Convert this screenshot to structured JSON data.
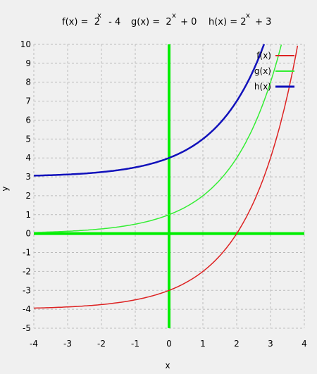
{
  "chart_data": {
    "type": "line",
    "title_parts": [
      "f(x) =  2",
      "x",
      " - 4",
      "g(x) =  2",
      "x",
      " + 0",
      "h(x) = 2",
      "x",
      " + 3"
    ],
    "xlabel": "x",
    "ylabel": "y",
    "xlim": [
      -4,
      4
    ],
    "ylim": [
      -5,
      10
    ],
    "xticks": [
      -4,
      -3,
      -2,
      -1,
      0,
      1,
      2,
      3,
      4
    ],
    "yticks": [
      -5,
      -4,
      -3,
      -2,
      -1,
      0,
      1,
      2,
      3,
      4,
      5,
      6,
      7,
      8,
      9,
      10
    ],
    "grid": true,
    "legend_position": "top-right",
    "axes_color": "#00ee00",
    "series": [
      {
        "name": "f(x)",
        "color": "#dd2222",
        "offset": -4,
        "x": [
          -4,
          -3,
          -2,
          -1,
          0,
          1,
          2,
          3,
          3.5,
          3.8
        ],
        "y": [
          -3.94,
          -3.88,
          -3.75,
          -3.5,
          -3,
          -2,
          0,
          4,
          7.31,
          9.93
        ]
      },
      {
        "name": "g(x)",
        "color": "#33ee33",
        "offset": 0,
        "x": [
          -4,
          -3,
          -2,
          -1,
          0,
          1,
          2,
          3,
          3.32
        ],
        "y": [
          0.06,
          0.13,
          0.25,
          0.5,
          1,
          2,
          4,
          8,
          10
        ]
      },
      {
        "name": "h(x)",
        "color": "#1111bb",
        "offset": 3,
        "x": [
          -4,
          -3,
          -2,
          -1,
          0,
          1,
          2,
          2.5,
          2.81
        ],
        "y": [
          3.06,
          3.13,
          3.25,
          3.5,
          4,
          5,
          7,
          8.66,
          10
        ]
      }
    ]
  }
}
